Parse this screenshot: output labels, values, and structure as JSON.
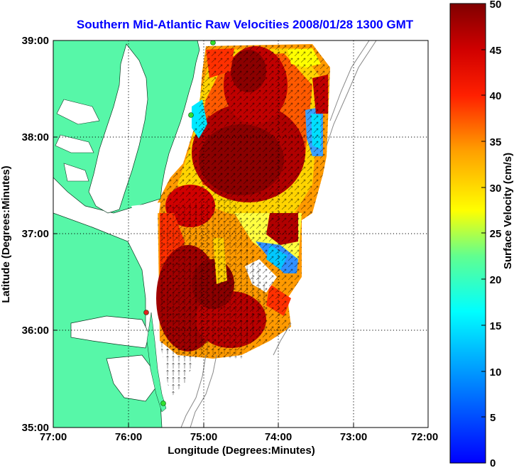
{
  "map": {
    "title": "Southern Mid-Atlantic Raw Velocities 2008/01/28 1300 GMT",
    "title_color": "#0000ff",
    "xlabel": "Longitude (Degrees:Minutes)",
    "ylabel": "Latitude (Degrees:Minutes)",
    "x_ticks": [
      "77:00",
      "76:00",
      "75:00",
      "74:00",
      "73:00",
      "72:00"
    ],
    "y_ticks": [
      "39:00",
      "38:00",
      "37:00",
      "36:00",
      "35:00"
    ],
    "land_color": "#57f7a8",
    "grid": "dotted"
  },
  "colorbar": {
    "label": "Surface Velocity (cm/s)",
    "ticks": [
      "50",
      "45",
      "40",
      "35",
      "30",
      "25",
      "20",
      "15",
      "10",
      "5",
      "0"
    ],
    "min": 0,
    "max": 50,
    "colormap": "jet"
  },
  "stations": [
    {
      "color": "#30e030"
    },
    {
      "color": "#30e030"
    },
    {
      "color": "#e02020"
    },
    {
      "color": "#30e030"
    }
  ]
}
